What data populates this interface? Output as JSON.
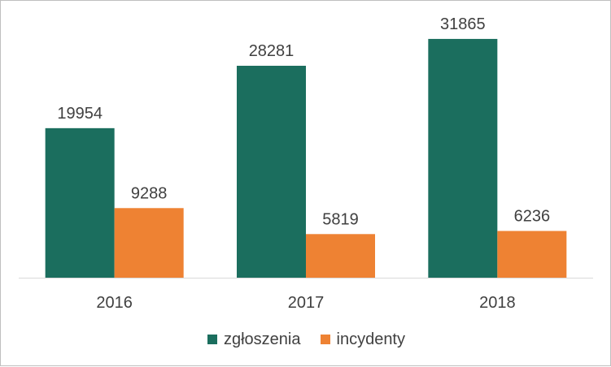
{
  "chart_data": {
    "type": "bar",
    "title": "",
    "xlabel": "",
    "ylabel": "",
    "categories": [
      "2016",
      "2017",
      "2018"
    ],
    "series": [
      {
        "name": "zgłoszenia",
        "values": [
          19954,
          28281,
          31865
        ],
        "color": "#1b6e5e"
      },
      {
        "name": "incydenty",
        "values": [
          9288,
          5819,
          6236
        ],
        "color": "#ee8233"
      }
    ],
    "ylim": [
      0,
      35000
    ],
    "grid": false,
    "data_labels": true,
    "legend_position": "bottom"
  }
}
